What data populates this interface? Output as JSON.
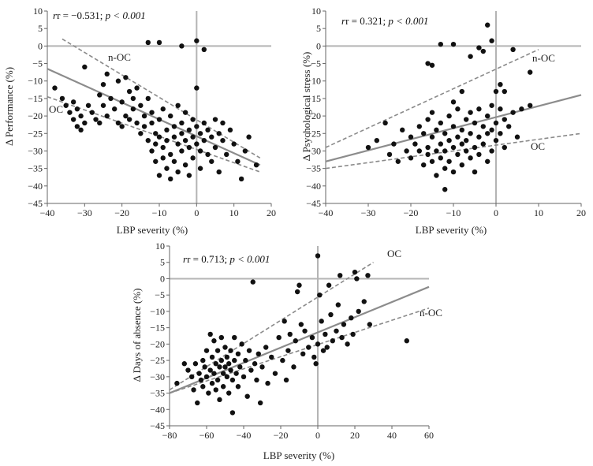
{
  "chart_data": [
    {
      "type": "scatter",
      "id": "performance",
      "xlabel": "LBP severity (%)",
      "ylabel": "Δ Performance (%)",
      "stat_r": "r = −0.531; ",
      "stat_p": "p < 0.001",
      "xlim": [
        -40,
        20
      ],
      "ylim": [
        -45,
        10
      ],
      "xticks": [
        -40,
        -30,
        -20,
        -10,
        0,
        10,
        20
      ],
      "yticks": [
        10,
        5,
        0,
        -5,
        -10,
        -15,
        -20,
        -25,
        -30,
        -35,
        -40,
        -45
      ],
      "tick_labels": {
        "x": [
          "−40",
          "−30",
          "−20",
          "−10",
          "0",
          "10",
          "20"
        ],
        "y": [
          "10",
          "5",
          "0",
          "−5",
          "−10",
          "−15",
          "−20",
          "−25",
          "−30",
          "−35",
          "−40",
          "−45"
        ]
      },
      "regression": {
        "x": [
          -40,
          17
        ],
        "y": [
          -6.5,
          -34
        ]
      },
      "bands": [
        {
          "label": "n-OC",
          "x": [
            -36,
            17
          ],
          "y": [
            2,
            -32
          ]
        },
        {
          "label": "OC",
          "x": [
            -40,
            17
          ],
          "y": [
            -14.5,
            -36
          ]
        }
      ],
      "points": [
        [
          -38,
          -12
        ],
        [
          -36,
          -15
        ],
        [
          -35,
          -17
        ],
        [
          -34,
          -19
        ],
        [
          -33,
          -16
        ],
        [
          -33,
          -21
        ],
        [
          -32,
          -23
        ],
        [
          -32,
          -18
        ],
        [
          -31,
          -20
        ],
        [
          -31,
          -24
        ],
        [
          -30,
          -6
        ],
        [
          -30,
          -22
        ],
        [
          -29,
          -17
        ],
        [
          -28,
          -19
        ],
        [
          -27,
          -21
        ],
        [
          -26,
          -14
        ],
        [
          -26,
          -22
        ],
        [
          -25,
          -17
        ],
        [
          -25,
          -11
        ],
        [
          -24,
          -8
        ],
        [
          -24,
          -20
        ],
        [
          -23,
          -15
        ],
        [
          -22,
          -18
        ],
        [
          -21,
          -10
        ],
        [
          -21,
          -22
        ],
        [
          -20,
          -16
        ],
        [
          -20,
          -23
        ],
        [
          -19,
          -9
        ],
        [
          -19,
          -20
        ],
        [
          -18,
          -13
        ],
        [
          -18,
          -21
        ],
        [
          -17,
          -15
        ],
        [
          -17,
          -18
        ],
        [
          -16,
          -12
        ],
        [
          -16,
          -22
        ],
        [
          -15,
          -25
        ],
        [
          -15,
          -17
        ],
        [
          -14,
          -20
        ],
        [
          -14,
          -23
        ],
        [
          -13,
          -27
        ],
        [
          -13,
          -15
        ],
        [
          -12,
          -19
        ],
        [
          -12,
          -22
        ],
        [
          -12,
          -30
        ],
        [
          -11,
          -25
        ],
        [
          -11,
          -33
        ],
        [
          -11,
          -28
        ],
        [
          -10,
          -21
        ],
        [
          -10,
          -26
        ],
        [
          -10,
          -37
        ],
        [
          -9,
          -18
        ],
        [
          -9,
          -29
        ],
        [
          -9,
          -32
        ],
        [
          -8,
          -24
        ],
        [
          -8,
          -27
        ],
        [
          -8,
          -35
        ],
        [
          -7,
          -20
        ],
        [
          -7,
          -31
        ],
        [
          -7,
          -38
        ],
        [
          -6,
          -23
        ],
        [
          -6,
          -26
        ],
        [
          -6,
          -33
        ],
        [
          -5,
          -17
        ],
        [
          -5,
          -28
        ],
        [
          -5,
          -36
        ],
        [
          -4,
          -22
        ],
        [
          -4,
          -30
        ],
        [
          -4,
          -25
        ],
        [
          -3,
          -19
        ],
        [
          -3,
          -27
        ],
        [
          -3,
          -34
        ],
        [
          -2,
          -24
        ],
        [
          -2,
          -29
        ],
        [
          -2,
          -37
        ],
        [
          -1,
          -21
        ],
        [
          -1,
          -26
        ],
        [
          -1,
          -32
        ],
        [
          0,
          -23
        ],
        [
          0,
          -28
        ],
        [
          0,
          -12
        ],
        [
          1,
          -25
        ],
        [
          1,
          -30
        ],
        [
          1,
          -35
        ],
        [
          2,
          -22
        ],
        [
          2,
          -27
        ],
        [
          3,
          -24
        ],
        [
          3,
          -31
        ],
        [
          4,
          -26
        ],
        [
          4,
          -33
        ],
        [
          5,
          -21
        ],
        [
          5,
          -29
        ],
        [
          6,
          -25
        ],
        [
          6,
          -36
        ],
        [
          7,
          -27
        ],
        [
          7,
          -22
        ],
        [
          8,
          -31
        ],
        [
          9,
          -24
        ],
        [
          10,
          -28
        ],
        [
          11,
          -33
        ],
        [
          12,
          -38
        ],
        [
          13,
          -30
        ],
        [
          14,
          -26
        ],
        [
          16,
          -34
        ],
        [
          -13,
          1
        ],
        [
          -10,
          1
        ],
        [
          -4,
          0
        ],
        [
          0,
          1.5
        ],
        [
          2,
          -1
        ]
      ]
    },
    {
      "type": "scatter",
      "id": "psych_stress",
      "xlabel": "LBP severity (%)",
      "ylabel": "Δ Psychological stress (%)",
      "stat_r": "r = 0.321; ",
      "stat_p": "p < 0.001",
      "xlim": [
        -40,
        20
      ],
      "ylim": [
        -45,
        10
      ],
      "xticks": [
        -40,
        -30,
        -20,
        -10,
        0,
        10,
        20
      ],
      "yticks": [
        10,
        5,
        0,
        -5,
        -10,
        -15,
        -20,
        -25,
        -30,
        -35,
        -40,
        -45
      ],
      "tick_labels": {
        "x": [
          "−40",
          "−30",
          "−20",
          "−10",
          "0",
          "10",
          "20"
        ],
        "y": [
          "10",
          "5",
          "0",
          "−5",
          "−10",
          "−15",
          "−20",
          "−25",
          "−30",
          "−35",
          "−40",
          "−45"
        ]
      },
      "regression": {
        "x": [
          -40,
          20
        ],
        "y": [
          -33,
          -14
        ]
      },
      "bands": [
        {
          "label": "n-OC",
          "x": [
            -40,
            10
          ],
          "y": [
            -29,
            -1
          ]
        },
        {
          "label": "OC",
          "x": [
            -40,
            20
          ],
          "y": [
            -35,
            -25
          ]
        }
      ],
      "points": [
        [
          -30,
          -29
        ],
        [
          -28,
          -27
        ],
        [
          -26,
          -22
        ],
        [
          -25,
          -31
        ],
        [
          -24,
          -28
        ],
        [
          -23,
          -33
        ],
        [
          -22,
          -24
        ],
        [
          -21,
          -30
        ],
        [
          -20,
          -26
        ],
        [
          -20,
          -32
        ],
        [
          -19,
          -28
        ],
        [
          -18,
          -23
        ],
        [
          -18,
          -30
        ],
        [
          -17,
          -25
        ],
        [
          -17,
          -34
        ],
        [
          -16,
          -21
        ],
        [
          -16,
          -29
        ],
        [
          -16,
          -31
        ],
        [
          -15,
          -26
        ],
        [
          -15,
          -33
        ],
        [
          -15,
          -19
        ],
        [
          -14,
          -24
        ],
        [
          -14,
          -30
        ],
        [
          -14,
          -37
        ],
        [
          -13,
          -22
        ],
        [
          -13,
          -28
        ],
        [
          -13,
          -32
        ],
        [
          -12,
          -25
        ],
        [
          -12,
          -30
        ],
        [
          -12,
          -35
        ],
        [
          -12,
          -41
        ],
        [
          -11,
          -20
        ],
        [
          -11,
          -27
        ],
        [
          -11,
          -33
        ],
        [
          -10,
          -23
        ],
        [
          -10,
          -29
        ],
        [
          -10,
          -36
        ],
        [
          -9,
          -18
        ],
        [
          -9,
          -26
        ],
        [
          -9,
          -31
        ],
        [
          -8,
          -24
        ],
        [
          -8,
          -28
        ],
        [
          -8,
          -34
        ],
        [
          -7,
          -21
        ],
        [
          -7,
          -27
        ],
        [
          -7,
          -30
        ],
        [
          -6,
          -19
        ],
        [
          -6,
          -25
        ],
        [
          -6,
          -32
        ],
        [
          -5,
          -22
        ],
        [
          -5,
          -29
        ],
        [
          -5,
          -36
        ],
        [
          -4,
          -18
        ],
        [
          -4,
          -26
        ],
        [
          -4,
          -31
        ],
        [
          -3,
          -23
        ],
        [
          -3,
          -28
        ],
        [
          -2,
          -20
        ],
        [
          -2,
          -25
        ],
        [
          -2,
          -33
        ],
        [
          -1,
          -17
        ],
        [
          -1,
          -24
        ],
        [
          -1,
          -30
        ],
        [
          0,
          -22
        ],
        [
          0,
          -27
        ],
        [
          0,
          -13
        ],
        [
          1,
          -18
        ],
        [
          1,
          -25
        ],
        [
          2,
          -21
        ],
        [
          2,
          -29
        ],
        [
          3,
          -23
        ],
        [
          4,
          -19
        ],
        [
          5,
          -26
        ],
        [
          6,
          -18
        ],
        [
          8,
          -17
        ],
        [
          -16,
          -5
        ],
        [
          -15,
          -5.5
        ],
        [
          -13,
          0.5
        ],
        [
          -10,
          0.5
        ],
        [
          -6,
          -3
        ],
        [
          -4,
          -0.5
        ],
        [
          -3,
          -1.5
        ],
        [
          -2,
          6
        ],
        [
          -1,
          1.5
        ],
        [
          1,
          -11
        ],
        [
          2,
          -13
        ],
        [
          4,
          -1
        ],
        [
          8,
          -7.5
        ],
        [
          -10,
          -16
        ],
        [
          -8,
          -13
        ]
      ]
    },
    {
      "type": "scatter",
      "id": "absence",
      "xlabel": "LBP severity (%)",
      "ylabel": "Δ Days of absence (%)",
      "stat_r": "r = 0.713; ",
      "stat_p": "p < 0.001",
      "xlim": [
        -80,
        60
      ],
      "ylim": [
        -45,
        10
      ],
      "xticks": [
        -80,
        -60,
        -40,
        -20,
        0,
        20,
        40,
        60
      ],
      "yticks": [
        10,
        5,
        0,
        -5,
        -10,
        -15,
        -20,
        -25,
        -30,
        -35,
        -40,
        -45
      ],
      "tick_labels": {
        "x": [
          "−80",
          "−60",
          "−40",
          "−20",
          "0",
          "20",
          "40",
          "60"
        ],
        "y": [
          "10",
          "5",
          "0",
          "−5",
          "−10",
          "−15",
          "−20",
          "−25",
          "−30",
          "−35",
          "−40",
          "−45"
        ]
      },
      "regression": {
        "x": [
          -80,
          60
        ],
        "y": [
          -35,
          -2.5
        ]
      },
      "bands": [
        {
          "label": "OC",
          "x": [
            -80,
            30
          ],
          "y": [
            -34,
            5
          ]
        },
        {
          "label": "n-OC",
          "x": [
            -80,
            60
          ],
          "y": [
            -35,
            -9
          ]
        }
      ],
      "points": [
        [
          -76,
          -32
        ],
        [
          -72,
          -26
        ],
        [
          -70,
          -28
        ],
        [
          -68,
          -30
        ],
        [
          -67,
          -34
        ],
        [
          -66,
          -26
        ],
        [
          -65,
          -38
        ],
        [
          -64,
          -29
        ],
        [
          -63,
          -31
        ],
        [
          -62,
          -25
        ],
        [
          -62,
          -33
        ],
        [
          -61,
          -27
        ],
        [
          -60,
          -22
        ],
        [
          -60,
          -30
        ],
        [
          -59,
          -35
        ],
        [
          -58,
          -17
        ],
        [
          -58,
          -28
        ],
        [
          -57,
          -24
        ],
        [
          -57,
          -32
        ],
        [
          -56,
          -19
        ],
        [
          -56,
          -29
        ],
        [
          -55,
          -26
        ],
        [
          -55,
          -34
        ],
        [
          -54,
          -22
        ],
        [
          -54,
          -31
        ],
        [
          -53,
          -27
        ],
        [
          -53,
          -37
        ],
        [
          -52,
          -18
        ],
        [
          -52,
          -25
        ],
        [
          -51,
          -29
        ],
        [
          -51,
          -33
        ],
        [
          -50,
          -21
        ],
        [
          -50,
          -27
        ],
        [
          -49,
          -24
        ],
        [
          -49,
          -30
        ],
        [
          -48,
          -26
        ],
        [
          -48,
          -35
        ],
        [
          -47,
          -22
        ],
        [
          -47,
          -28
        ],
        [
          -46,
          -41
        ],
        [
          -46,
          -31
        ],
        [
          -45,
          -25
        ],
        [
          -45,
          -18
        ],
        [
          -44,
          -29
        ],
        [
          -43,
          -23
        ],
        [
          -43,
          -33
        ],
        [
          -42,
          -27
        ],
        [
          -41,
          -20
        ],
        [
          -40,
          -30
        ],
        [
          -39,
          -25
        ],
        [
          -38,
          -36
        ],
        [
          -37,
          -22
        ],
        [
          -36,
          -28
        ],
        [
          -35,
          -1
        ],
        [
          -34,
          -26
        ],
        [
          -33,
          -31
        ],
        [
          -32,
          -23
        ],
        [
          -31,
          -38
        ],
        [
          -30,
          -27
        ],
        [
          -28,
          -21
        ],
        [
          -27,
          -32
        ],
        [
          -25,
          -24
        ],
        [
          -23,
          -29
        ],
        [
          -21,
          -18
        ],
        [
          -19,
          -25
        ],
        [
          -18,
          -13
        ],
        [
          -17,
          -31
        ],
        [
          -16,
          -22
        ],
        [
          -15,
          -17
        ],
        [
          -13,
          -27
        ],
        [
          -12,
          -19
        ],
        [
          -11,
          -4
        ],
        [
          -10,
          -2
        ],
        [
          -9,
          -14
        ],
        [
          -8,
          -23
        ],
        [
          -7,
          -16
        ],
        [
          -5,
          -21
        ],
        [
          -3,
          -18
        ],
        [
          -2,
          -24
        ],
        [
          -1,
          -26
        ],
        [
          0,
          7
        ],
        [
          0,
          -20
        ],
        [
          1,
          -5
        ],
        [
          2,
          -13
        ],
        [
          3,
          -22
        ],
        [
          4,
          -17
        ],
        [
          5,
          -21
        ],
        [
          6,
          -2
        ],
        [
          7,
          -11
        ],
        [
          8,
          -19
        ],
        [
          10,
          -16
        ],
        [
          11,
          -8
        ],
        [
          12,
          1
        ],
        [
          13,
          -18
        ],
        [
          14,
          -14
        ],
        [
          16,
          -20
        ],
        [
          18,
          -12
        ],
        [
          19,
          -17
        ],
        [
          20,
          2
        ],
        [
          21,
          0
        ],
        [
          22,
          -10
        ],
        [
          25,
          -7
        ],
        [
          27,
          1
        ],
        [
          28,
          -14
        ],
        [
          48,
          -19
        ]
      ]
    }
  ]
}
